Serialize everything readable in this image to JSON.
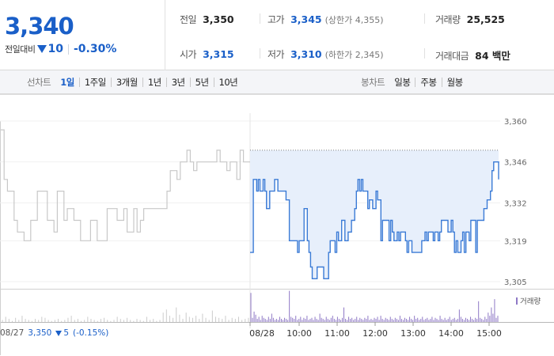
{
  "summary": {
    "current_price": "3,340",
    "change_label": "전일대비",
    "change_amount": "10",
    "change_percent": "-0.30%",
    "prev_close_label": "전일",
    "prev_close_value": "3,350",
    "high_label": "고가",
    "high_value": "3,345",
    "upper_limit": "(상한가 4,355)",
    "volume_label": "거래량",
    "volume_value": "25,525",
    "open_label": "시가",
    "open_value": "3,315",
    "low_label": "저가",
    "low_value": "3,310",
    "lower_limit": "(하한가 2,345)",
    "amount_label": "거래대금",
    "amount_value": "84 백만"
  },
  "line_tabs": {
    "title": "선차트",
    "items": [
      {
        "label": "1일",
        "active": true
      },
      {
        "label": "1주일",
        "active": false
      },
      {
        "label": "3개월",
        "active": false
      },
      {
        "label": "1년",
        "active": false
      },
      {
        "label": "3년",
        "active": false
      },
      {
        "label": "5년",
        "active": false
      },
      {
        "label": "10년",
        "active": false
      }
    ]
  },
  "candle_tabs": {
    "title": "봉차트",
    "items": [
      {
        "label": "일봉",
        "active": false
      },
      {
        "label": "주봉",
        "active": false
      },
      {
        "label": "월봉",
        "active": false
      }
    ]
  },
  "prev_day": {
    "date": "08/27",
    "close": "3,350",
    "change": "5",
    "percent": "(-0.15%)"
  },
  "volume_legend": "거래량",
  "chart_data": {
    "type": "line",
    "y_ticks": [
      "3,360",
      "3,346",
      "3,332",
      "3,319",
      "3,305"
    ],
    "y_tick_values": [
      3360,
      3346,
      3332,
      3319,
      3305
    ],
    "ylim": [
      3305,
      3360
    ],
    "x_labels": [
      "08/28",
      "10:00",
      "11:00",
      "12:00",
      "13:00",
      "14:00",
      "15:00"
    ],
    "previous_close": 3350,
    "series": [
      {
        "type": "prev_day",
        "color": "#c8c8c8",
        "values": [
          3357,
          3340,
          3336,
          3336,
          3326,
          3322,
          3322,
          3319,
          3319,
          3326,
          3326,
          3336,
          3336,
          3336,
          3326,
          3326,
          3322,
          3336,
          3336,
          3326,
          3330,
          3330,
          3326,
          3326,
          3319,
          3319,
          3319,
          3326,
          3326,
          3319,
          3319,
          3319,
          3330,
          3330,
          3330,
          3326,
          3326,
          3330,
          3322,
          3322,
          3330,
          3322,
          3326,
          3330,
          3330,
          3330,
          3330,
          3330,
          3330,
          3330,
          3336,
          3343,
          3343,
          3340,
          3346,
          3346,
          3350,
          3346,
          3343,
          3346,
          3346,
          3346,
          3346,
          3346,
          3346,
          3350,
          3346,
          3346,
          3343,
          3346,
          3346,
          3340,
          3350,
          3346,
          3346,
          3346
        ]
      },
      {
        "type": "today",
        "color": "#3b7bd6",
        "fill": "#e7effb",
        "values": [
          3315,
          3315,
          3340,
          3340,
          3336,
          3340,
          3336,
          3336,
          3340,
          3336,
          3330,
          3330,
          3336,
          3336,
          3336,
          3340,
          3340,
          3336,
          3336,
          3336,
          3336,
          3336,
          3333,
          3333,
          3319,
          3319,
          3319,
          3319,
          3319,
          3315,
          3319,
          3319,
          3319,
          3330,
          3330,
          3319,
          3315,
          3310,
          3306,
          3306,
          3306,
          3310,
          3310,
          3310,
          3310,
          3306,
          3306,
          3306,
          3315,
          3319,
          3319,
          3319,
          3315,
          3322,
          3319,
          3319,
          3326,
          3326,
          3319,
          3319,
          3322,
          3322,
          3326,
          3326,
          3330,
          3336,
          3340,
          3336,
          3340,
          3336,
          3336,
          3336,
          3330,
          3333,
          3333,
          3330,
          3330,
          3336,
          3333,
          3333,
          3319,
          3326,
          3326,
          3326,
          3326,
          3319,
          3326,
          3322,
          3319,
          3319,
          3322,
          3319,
          3322,
          3322,
          3322,
          3319,
          3315,
          3319,
          3319,
          3315,
          3315,
          3315,
          3315,
          3315,
          3315,
          3319,
          3319,
          3322,
          3319,
          3322,
          3322,
          3322,
          3319,
          3322,
          3322,
          3319,
          3322,
          3326,
          3326,
          3326,
          3326,
          3322,
          3322,
          3326,
          3322,
          3315,
          3319,
          3315,
          3315,
          3319,
          3322,
          3315,
          3322,
          3322,
          3319,
          3326,
          3326,
          3326,
          3315,
          3326,
          3326,
          3326,
          3326,
          3330,
          3330,
          3333,
          3333,
          3336,
          3343,
          3346,
          3346,
          3346,
          3340
        ]
      }
    ],
    "volume": {
      "color": "#8f79c6",
      "prev_color": "#cccccc",
      "prev_values": [
        2,
        5,
        3,
        1,
        4,
        2,
        6,
        3,
        2,
        1,
        3,
        2,
        5,
        4,
        2,
        1,
        2,
        3,
        1,
        2,
        4,
        6,
        2,
        3,
        1,
        2,
        5,
        3,
        2,
        1,
        3,
        4,
        2,
        1,
        2,
        5,
        3,
        2,
        4,
        2,
        1,
        3,
        2,
        1,
        5,
        2,
        3,
        1,
        2,
        9,
        12,
        6,
        4,
        14,
        7,
        3,
        9,
        5,
        4,
        6,
        3,
        8,
        4,
        2,
        11,
        5,
        4,
        3,
        6,
        2,
        4,
        3,
        5,
        2,
        3,
        4
      ],
      "today_values": [
        28,
        4,
        10,
        7,
        3,
        5,
        2,
        6,
        4,
        3,
        2,
        5,
        3,
        8,
        4,
        2,
        3,
        2,
        5,
        3,
        2,
        4,
        3,
        2,
        30,
        5,
        4,
        3,
        6,
        2,
        3,
        5,
        2,
        4,
        3,
        6,
        2,
        3,
        4,
        2,
        5,
        3,
        2,
        8,
        4,
        3,
        2,
        5,
        3,
        2,
        4,
        6,
        3,
        2,
        5,
        3,
        2,
        4,
        14,
        3,
        2,
        5,
        3,
        4,
        2,
        3,
        5,
        2,
        4,
        3,
        2,
        4,
        3,
        6,
        2,
        3,
        2,
        4,
        3,
        5,
        2,
        6,
        3,
        2,
        4,
        3,
        2,
        5,
        3,
        2,
        4,
        3,
        2,
        6,
        3,
        2,
        4,
        3,
        2,
        5,
        3,
        2,
        6,
        3,
        4,
        2,
        3,
        5,
        2,
        3,
        4,
        2,
        3,
        5,
        2,
        4,
        3,
        2,
        6,
        3,
        2,
        4,
        2,
        3,
        5,
        2,
        3,
        4,
        2,
        3,
        12,
        5,
        3,
        2,
        4,
        3,
        2,
        5,
        3,
        2,
        4,
        3,
        20,
        4,
        3,
        2,
        5,
        3,
        9,
        6,
        14,
        8,
        22,
        4,
        6
      ]
    }
  }
}
